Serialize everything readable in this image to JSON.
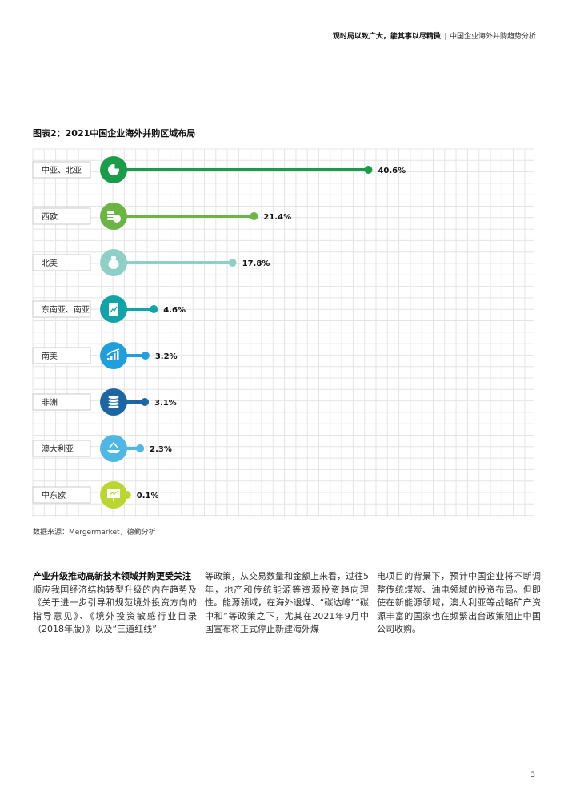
{
  "header": {
    "bold": "观时局以致广大，能其事以尽精微",
    "separator": "|",
    "title": "中国企业海外并购趋势分析"
  },
  "chart_title": "图表2：2021中国企业海外并购区域布局",
  "chart_data": {
    "type": "bar",
    "orientation": "horizontal",
    "categories": [
      "中亚、北亚",
      "西欧",
      "北美",
      "东南亚、南亚",
      "南美",
      "非洲",
      "澳大利亚",
      "中东欧"
    ],
    "values": [
      40.6,
      21.4,
      17.8,
      4.6,
      3.2,
      3.1,
      2.3,
      0.1
    ],
    "labels": [
      "40.6%",
      "21.4%",
      "17.8%",
      "4.6%",
      "3.2%",
      "3.1%",
      "2.3%",
      "0.1%"
    ],
    "colors": [
      "#1a9c4a",
      "#6ab544",
      "#8fd0c6",
      "#12a3a8",
      "#1f9fdc",
      "#1c67a3",
      "#4fb7e6",
      "#bcd631"
    ],
    "icons": [
      "pie-chart-icon",
      "coins-dollar-icon",
      "money-bag-icon",
      "document-chart-icon",
      "growth-chart-icon",
      "coin-stack-icon",
      "scale-icon",
      "presentation-icon"
    ],
    "grid": true,
    "xlim": [
      0,
      47
    ]
  },
  "source": "数据来源：Mergermarket，德勤分析",
  "columns": [
    {
      "lead": "产业升级推动高新技术领域并购更受关注",
      "text": "顺应我国经济结构转型升级的内在趋势及《关于进一步引导和规范境外投资方向的指导意见》、《境外投资敏感行业目录（2018年版）》以及“三道红线”"
    },
    {
      "lead": "",
      "text": "等政策，从交易数量和金额上来看，过往5年，地产和传统能源等资源投资趋向理性。能源领域，在海外退煤、“碳达峰”“碳中和”等政策之下，尤其在2021年9月中国宣布将正式停止新建海外煤"
    },
    {
      "lead": "",
      "text": "电项目的背景下，预计中国企业将不断调整传统煤炭、油电领域的投资布局。但即使在新能源领域，澳大利亚等战略矿产资源丰富的国家也在频繁出台政策阻止中国公司收购。"
    }
  ],
  "page_number": "3"
}
